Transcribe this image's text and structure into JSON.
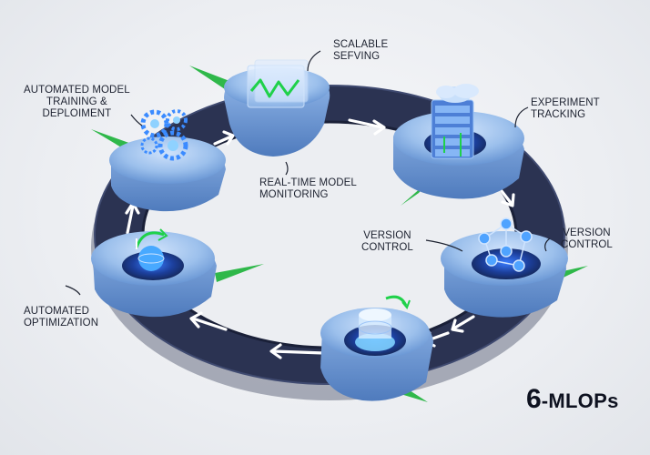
{
  "title": {
    "number": "6",
    "text": "-MLOPs"
  },
  "stages": [
    {
      "name": "Automated Model Training & Deploiment",
      "lines": [
        "AUTOMATED MODEL",
        "TRAINING &",
        "DEPLOIMENT"
      ],
      "icon": "gears-icon"
    },
    {
      "name": "Scalable Sefving",
      "lines": [
        "SCALABLE",
        "SEFVING"
      ],
      "icon": "waveform-icon"
    },
    {
      "name": "Experiment Tracking",
      "lines": [
        "EXPERIMENT",
        "TRACKING"
      ],
      "icon": "server-cloud-icon"
    },
    {
      "name": "Version Control",
      "lines": [
        "VERSION",
        "CONTROL"
      ],
      "icon": "molecule-icon"
    },
    {
      "name": "Real-time Model Monitoring",
      "lines": [
        "REAL-TIME MODEL",
        "MONITORING"
      ],
      "icon": "monitor-icon"
    },
    {
      "name": "Version Control (left)",
      "lines": [
        "VERSION",
        "CONTROL"
      ],
      "icon": "network-icon"
    },
    {
      "name": "Automated Optimization",
      "lines": [
        "AUTOMATED",
        "OPTIMIZATION"
      ],
      "icon": "sphere-cycle-icon"
    }
  ],
  "colors": {
    "track": "#2b3352",
    "module": "#8fb8e8",
    "module_dark": "#5f8fd0",
    "accent_green": "#33c24d",
    "glow_blue": "#2f7cff",
    "arrow": "#ffffff"
  },
  "arrow_count": 9
}
